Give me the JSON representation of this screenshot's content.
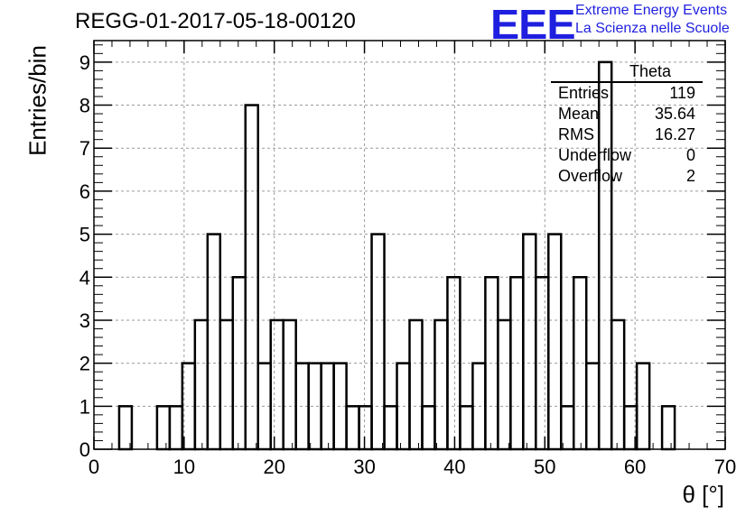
{
  "header": {
    "title": "REGG-01-2017-05-18-00120",
    "logo_mark": "EEE",
    "logo_line1": "Extreme Energy Events",
    "logo_line2": "La Scienza nelle Scuole"
  },
  "stats_box": {
    "title": "Theta",
    "rows": [
      {
        "label": "Entries",
        "value": "119"
      },
      {
        "label": "Mean",
        "value": "35.64"
      },
      {
        "label": "RMS",
        "value": "16.27"
      },
      {
        "label": "Underflow",
        "value": "0"
      },
      {
        "label": "Overflow",
        "value": "2"
      }
    ]
  },
  "chart_data": {
    "type": "bar",
    "xlabel": "θ [°]",
    "ylabel": "Entries/bin",
    "xlim": [
      0,
      70
    ],
    "ylim": [
      0,
      9.5
    ],
    "bin_width": 1.4,
    "x_ticks": [
      0,
      10,
      20,
      30,
      40,
      50,
      60,
      70
    ],
    "y_ticks": [
      0,
      1,
      2,
      3,
      4,
      5,
      6,
      7,
      8,
      9
    ],
    "grid": true,
    "values": [
      0,
      0,
      1,
      0,
      0,
      1,
      1,
      2,
      3,
      5,
      3,
      4,
      8,
      2,
      3,
      3,
      2,
      2,
      2,
      2,
      1,
      1,
      5,
      1,
      2,
      3,
      1,
      3,
      4,
      1,
      2,
      4,
      3,
      4,
      5,
      4,
      5,
      1,
      4,
      2,
      9,
      3,
      1,
      2,
      0,
      1,
      0
    ]
  }
}
